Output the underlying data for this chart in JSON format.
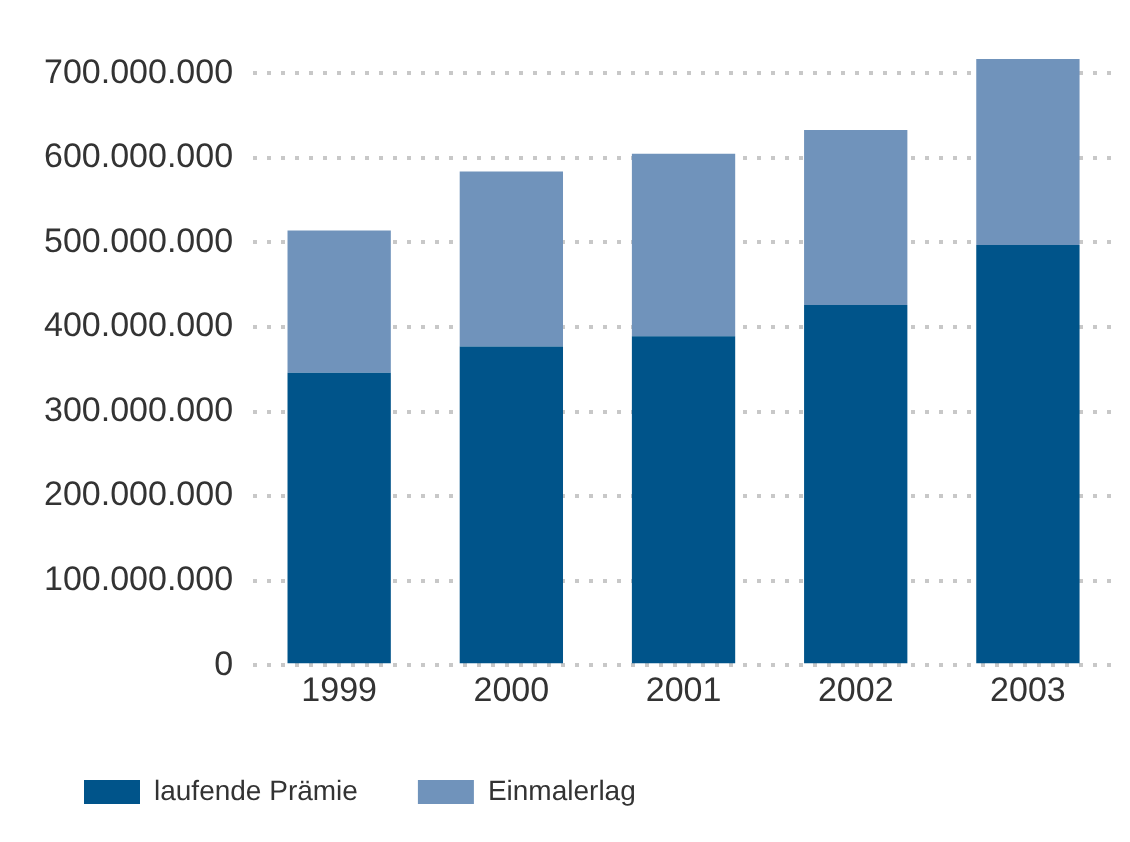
{
  "chart_data": {
    "type": "bar",
    "stacked": true,
    "categories": [
      "1999",
      "2000",
      "2001",
      "2002",
      "2003"
    ],
    "series": [
      {
        "name": "laufende Prämie",
        "color": "#00548a",
        "values": [
          346000000,
          377000000,
          389000000,
          426000000,
          497000000
        ]
      },
      {
        "name": "Einmalerlag",
        "color": "#7093bb",
        "values": [
          168000000,
          207000000,
          216000000,
          207000000,
          220000000
        ]
      }
    ],
    "ylim": [
      0,
      720000000
    ],
    "yticks": [
      {
        "value": 0,
        "label": "0"
      },
      {
        "value": 100000000,
        "label": "100.000.000"
      },
      {
        "value": 200000000,
        "label": "200.000.000"
      },
      {
        "value": 300000000,
        "label": "300.000.000"
      },
      {
        "value": 400000000,
        "label": "400.000.000"
      },
      {
        "value": 500000000,
        "label": "500.000.000"
      },
      {
        "value": 600000000,
        "label": "600.000.000"
      },
      {
        "value": 700000000,
        "label": "700.000.000"
      }
    ],
    "grid": "y",
    "legend": "bottom"
  }
}
